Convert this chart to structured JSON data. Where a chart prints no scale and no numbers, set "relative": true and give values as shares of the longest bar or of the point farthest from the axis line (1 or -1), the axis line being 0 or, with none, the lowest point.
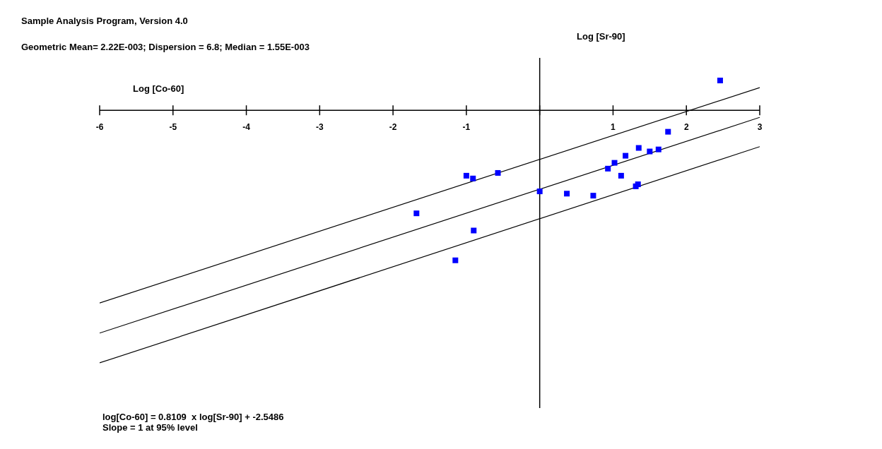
{
  "chart_data": {
    "type": "scatter",
    "title": "Sample Analysis Program, Version 4.0",
    "subtitle": "Geometric Mean= 2.22E-003; Dispersion = 6.8; Median = 1.55E-003",
    "xlabel": "Log [Co-60]",
    "ylabel": "Log [Sr-90]",
    "relative": true,
    "tick_labels": "x",
    "xlim": [
      -6,
      3
    ],
    "xticks": [
      -6,
      -5,
      -4,
      -3,
      -2,
      -1,
      {
        "value": 0,
        "label": null
      },
      1,
      2,
      3
    ],
    "annotations": [
      "log[Co-60] = 0.8109  x log[Sr-90] + -2.5486",
      "Slope = 1 at 95% level"
    ],
    "series": [
      {
        "type": "line",
        "color": "#000000",
        "x": [
          -6,
          3
        ],
        "values": [
          -0.763,
          0.09
        ]
      },
      {
        "type": "line",
        "color": "#000000",
        "x": [
          -6,
          3
        ],
        "values": [
          -0.882,
          -0.028
        ]
      },
      {
        "type": "line",
        "color": "#000000",
        "x": [
          -6,
          3
        ],
        "values": [
          -1.0,
          -0.144
        ]
      },
      {
        "color": "#0000ff",
        "marker": "square",
        "x": [
          2.46,
          1.75,
          1.35,
          1.5,
          1.62,
          1.17,
          1.02,
          0.93,
          1.11,
          1.31,
          1.34,
          0.73,
          0.37,
          0.0,
          -0.57,
          -1.0,
          -0.91,
          -1.68,
          -0.9,
          -1.15
        ],
        "values": [
          0.118,
          -0.085,
          -0.149,
          -0.163,
          -0.155,
          -0.18,
          -0.208,
          -0.231,
          -0.259,
          -0.301,
          -0.293,
          -0.338,
          -0.33,
          -0.321,
          -0.248,
          -0.259,
          -0.27,
          -0.408,
          -0.476,
          -0.594
        ]
      }
    ]
  }
}
